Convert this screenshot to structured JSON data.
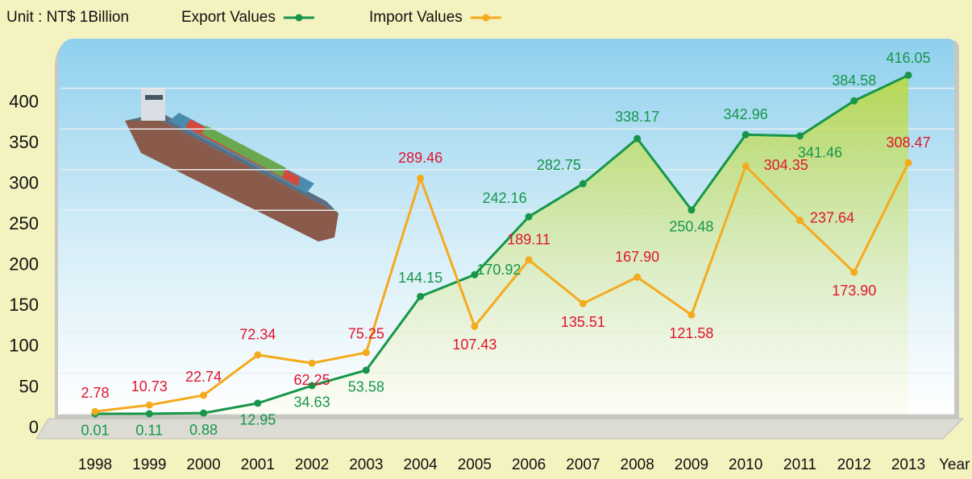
{
  "chart_data": {
    "type": "line",
    "unit_label": "Unit : NT$ 1Billion",
    "x_label": "Year",
    "categories": [
      "1998",
      "1999",
      "2000",
      "2001",
      "2002",
      "2003",
      "2004",
      "2005",
      "2006",
      "2007",
      "2008",
      "2009",
      "2010",
      "2011",
      "2012",
      "2013"
    ],
    "series": [
      {
        "name": "Export Values",
        "color": "#16964a",
        "label_color": "#16964a",
        "values": [
          0.01,
          0.11,
          0.88,
          12.95,
          34.63,
          53.58,
          144.15,
          170.92,
          242.16,
          282.75,
          338.17,
          250.48,
          342.96,
          341.46,
          384.58,
          416.05
        ]
      },
      {
        "name": "Import Values",
        "color": "#f5aa1e",
        "label_color": "#e0142c",
        "values": [
          2.78,
          10.73,
          22.74,
          72.34,
          62.25,
          75.25,
          289.46,
          107.43,
          189.11,
          135.51,
          167.9,
          121.58,
          304.35,
          237.64,
          173.9,
          308.47
        ],
        "value_labels": [
          "2.78",
          "10.73",
          "22.74",
          "72.34",
          "62.25",
          "75.25",
          "289.46",
          "107.43",
          "189.11",
          "135.51",
          "167.90",
          "121.58",
          "304.35",
          "237.64",
          "173.90",
          "308.47"
        ]
      }
    ],
    "ylim": [
      0,
      460
    ],
    "yticks": [
      0,
      50,
      100,
      150,
      200,
      250,
      300,
      350,
      400
    ],
    "grid": true
  }
}
